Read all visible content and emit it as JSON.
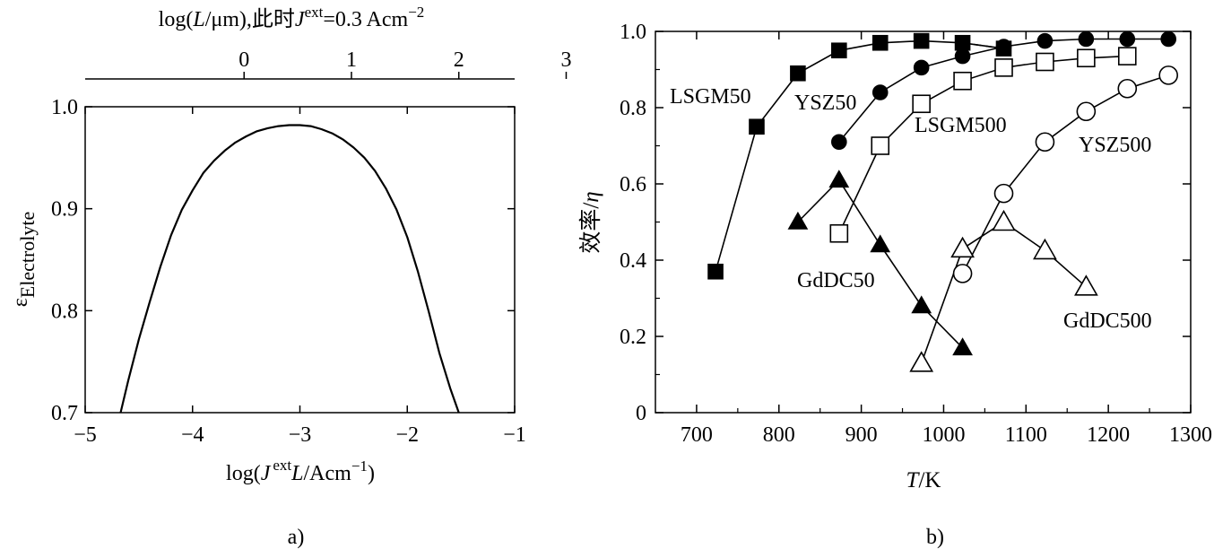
{
  "figure": {
    "panel_a_caption": "a)",
    "panel_b_caption": "b)"
  },
  "chart_data": [
    {
      "type": "line",
      "panel": "a",
      "xlabel_parts": [
        "log(",
        "J",
        "ext",
        "L",
        "/Acm",
        "−1",
        ")"
      ],
      "ylabel_parts": [
        "ε",
        "Electrolyte"
      ],
      "top_axis_label_parts": [
        "log(",
        "L",
        "/μm),此时",
        "J",
        "ext",
        "=0.3 Acm",
        "−2"
      ],
      "xlim": [
        -5,
        -1
      ],
      "ylim": [
        0.7,
        1.0
      ],
      "x_ticks": [
        -5,
        -4,
        -3,
        -2,
        -1
      ],
      "x_tick_labels": [
        "−5",
        "−4",
        "−3",
        "−2",
        "−1"
      ],
      "y_ticks": [
        0.7,
        0.8,
        0.9,
        1.0
      ],
      "y_tick_labels": [
        "0.7",
        "0.8",
        "0.9",
        "1.0"
      ],
      "top_ticks": [
        0,
        1,
        2,
        3
      ],
      "top_tick_labels": [
        "0",
        "1",
        "2",
        "3"
      ],
      "top_axis_offset": -3.52,
      "series": [
        {
          "x": [
            -4.67,
            -4.6,
            -4.5,
            -4.4,
            -4.3,
            -4.2,
            -4.1,
            -4.0,
            -3.9,
            -3.8,
            -3.7,
            -3.6,
            -3.5,
            -3.4,
            -3.3,
            -3.2,
            -3.1,
            -3.0,
            -2.9,
            -2.8,
            -2.7,
            -2.6,
            -2.5,
            -2.4,
            -2.3,
            -2.2,
            -2.1,
            -2.0,
            -1.9,
            -1.8,
            -1.7,
            -1.6,
            -1.52
          ],
          "y": [
            0.7,
            0.731,
            0.772,
            0.808,
            0.843,
            0.874,
            0.899,
            0.918,
            0.935,
            0.947,
            0.957,
            0.965,
            0.971,
            0.976,
            0.979,
            0.981,
            0.982,
            0.982,
            0.981,
            0.978,
            0.974,
            0.968,
            0.96,
            0.95,
            0.937,
            0.92,
            0.899,
            0.872,
            0.838,
            0.799,
            0.758,
            0.724,
            0.7
          ]
        }
      ]
    },
    {
      "type": "scatter",
      "panel": "b",
      "xlabel_parts": [
        "T",
        "/K"
      ],
      "ylabel_parts": [
        "效率/",
        "η"
      ],
      "xlim": [
        650,
        1300
      ],
      "ylim": [
        0,
        1.0
      ],
      "x_ticks": [
        700,
        800,
        900,
        1000,
        1100,
        1200,
        1300
      ],
      "x_tick_labels": [
        "700",
        "800",
        "900",
        "1000",
        "1100",
        "1200",
        "1300"
      ],
      "y_ticks": [
        0,
        0.2,
        0.4,
        0.6,
        0.8,
        1.0
      ],
      "y_tick_labels": [
        "0",
        "0.2",
        "0.4",
        "0.6",
        "0.8",
        "1.0"
      ],
      "series": [
        {
          "name": "LSGM50",
          "marker": "square",
          "fill": "#000000",
          "line": "solid",
          "x": [
            723,
            773,
            823,
            873,
            923,
            973,
            1023,
            1073
          ],
          "y": [
            0.37,
            0.75,
            0.89,
            0.95,
            0.97,
            0.975,
            0.97,
            0.955
          ]
        },
        {
          "name": "YSZ50",
          "marker": "circle",
          "fill": "#000000",
          "line": "solid",
          "x": [
            873,
            923,
            973,
            1023,
            1073,
            1123,
            1173,
            1223,
            1273
          ],
          "y": [
            0.71,
            0.84,
            0.905,
            0.935,
            0.96,
            0.975,
            0.98,
            0.98,
            0.98
          ]
        },
        {
          "name": "LSGM500",
          "marker": "square",
          "fill": "#ffffff",
          "line": "solid",
          "x": [
            873,
            923,
            973,
            1023,
            1073,
            1123,
            1173,
            1223
          ],
          "y": [
            0.47,
            0.7,
            0.81,
            0.87,
            0.905,
            0.92,
            0.93,
            0.935
          ]
        },
        {
          "name": "YSZ500",
          "marker": "circle",
          "fill": "#ffffff",
          "line": "solid",
          "x": [
            1023,
            1073,
            1123,
            1173,
            1223,
            1273
          ],
          "y": [
            0.365,
            0.575,
            0.71,
            0.79,
            0.85,
            0.885
          ]
        },
        {
          "name": "GdDC50",
          "marker": "triangle",
          "fill": "#000000",
          "line": "solid",
          "x": [
            823,
            873,
            923,
            973,
            1023
          ],
          "y": [
            0.5,
            0.61,
            0.44,
            0.28,
            0.17
          ]
        },
        {
          "name": "GdDC500",
          "marker": "triangle",
          "fill": "#ffffff",
          "line": "solid",
          "x": [
            973,
            1023,
            1073,
            1123,
            1173
          ],
          "y": [
            0.13,
            0.43,
            0.5,
            0.425,
            0.33
          ]
        }
      ],
      "dashed_link": {
        "x": [
          1023,
          1073
        ],
        "y": [
          0.97,
          0.955
        ]
      }
    }
  ]
}
